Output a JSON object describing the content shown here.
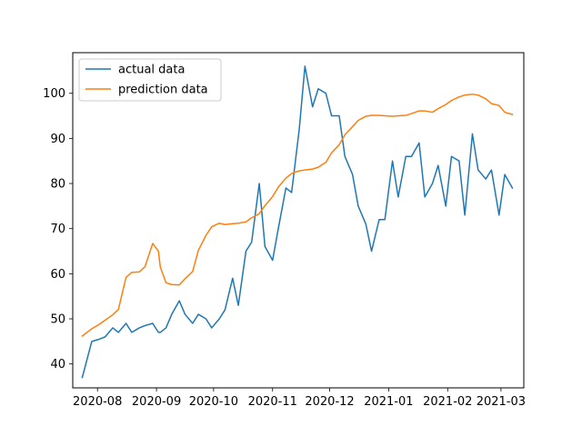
{
  "chart_data": {
    "type": "line",
    "title": "",
    "xlabel": "",
    "ylabel": "",
    "x_axis": {
      "kind": "date",
      "range": [
        "2020-07-19",
        "2021-03-13"
      ],
      "ticks": [
        {
          "date": "2020-08-01",
          "label": "2020-08"
        },
        {
          "date": "2020-09-01",
          "label": "2020-09"
        },
        {
          "date": "2020-10-01",
          "label": "2020-10"
        },
        {
          "date": "2020-11-01",
          "label": "2020-11"
        },
        {
          "date": "2020-12-01",
          "label": "2020-12"
        },
        {
          "date": "2021-01-01",
          "label": "2021-01"
        },
        {
          "date": "2021-02-01",
          "label": "2021-02"
        },
        {
          "date": "2021-03-01",
          "label": "2021-03"
        }
      ]
    },
    "y_axis": {
      "range": [
        34.7,
        109
      ],
      "ticks": [
        40,
        50,
        60,
        70,
        80,
        90,
        100
      ]
    },
    "grid": false,
    "legend": {
      "position": "top-left"
    },
    "dates": [
      "2020-07-24",
      "2020-07-29",
      "2020-08-02",
      "2020-08-05",
      "2020-08-09",
      "2020-08-12",
      "2020-08-16",
      "2020-08-19",
      "2020-08-23",
      "2020-08-26",
      "2020-08-30",
      "2020-09-02",
      "2020-09-03",
      "2020-09-06",
      "2020-09-09",
      "2020-09-13",
      "2020-09-16",
      "2020-09-20",
      "2020-09-23",
      "2020-09-27",
      "2020-09-30",
      "2020-10-04",
      "2020-10-07",
      "2020-10-11",
      "2020-10-14",
      "2020-10-18",
      "2020-10-21",
      "2020-10-25",
      "2020-10-28",
      "2020-11-01",
      "2020-11-04",
      "2020-11-08",
      "2020-11-11",
      "2020-11-15",
      "2020-11-18",
      "2020-11-22",
      "2020-11-25",
      "2020-11-29",
      "2020-12-02",
      "2020-12-06",
      "2020-12-09",
      "2020-12-13",
      "2020-12-16",
      "2020-12-20",
      "2020-12-23",
      "2020-12-27",
      "2020-12-30",
      "2021-01-03",
      "2021-01-06",
      "2021-01-10",
      "2021-01-13",
      "2021-01-17",
      "2021-01-20",
      "2021-01-24",
      "2021-01-27",
      "2021-01-31",
      "2021-02-03",
      "2021-02-07",
      "2021-02-10",
      "2021-02-14",
      "2021-02-17",
      "2021-02-21",
      "2021-02-24",
      "2021-02-28",
      "2021-03-03",
      "2021-03-07"
    ],
    "series": [
      {
        "name": "actual data",
        "color": "#1f77b4",
        "values": [
          37,
          45,
          45.5,
          46,
          48,
          47,
          49,
          47,
          48,
          48.5,
          49,
          47,
          47,
          48,
          51,
          54,
          51,
          49,
          51,
          50,
          48,
          50,
          52,
          59,
          53,
          65,
          67,
          80,
          66,
          63,
          70,
          79,
          78,
          92,
          106,
          97,
          101,
          100,
          95,
          95,
          86,
          82,
          75,
          71,
          65,
          72,
          72,
          85,
          77,
          86,
          86,
          89,
          77,
          80,
          84,
          75,
          86,
          85,
          73,
          91,
          83,
          81,
          83,
          73,
          82,
          79
        ]
      },
      {
        "name": "prediction data",
        "color": "#ff7f0e",
        "values": [
          46.2,
          47.8,
          48.8,
          49.7,
          50.9,
          52.1,
          59.2,
          60.3,
          60.4,
          61.6,
          66.7,
          65,
          61.5,
          58,
          57.6,
          57.5,
          58.9,
          60.5,
          65.2,
          68.5,
          70.4,
          71.2,
          70.9,
          71.1,
          71.2,
          71.5,
          72.4,
          73.3,
          75.1,
          77.1,
          79.2,
          81.2,
          82.2,
          82.8,
          83,
          83.2,
          83.6,
          84.7,
          86.8,
          88.6,
          90.8,
          92.6,
          94,
          94.9,
          95.1,
          95.1,
          95,
          94.9,
          95,
          95.1,
          95.5,
          96.1,
          96.1,
          95.8,
          96.6,
          97.5,
          98.4,
          99.2,
          99.6,
          99.8,
          99.6,
          98.8,
          97.7,
          97.3,
          95.8,
          95.3
        ]
      }
    ]
  }
}
